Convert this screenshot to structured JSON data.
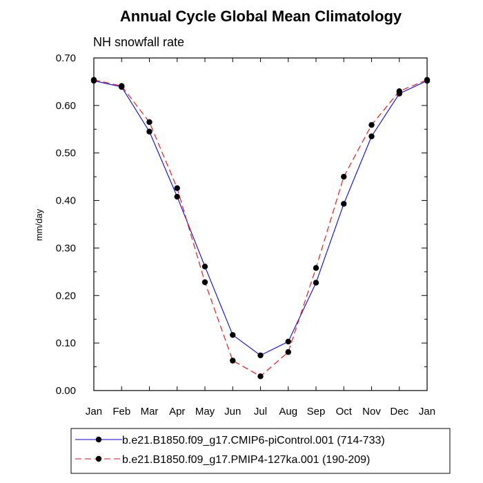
{
  "chart_data": {
    "type": "line",
    "title": "Annual Cycle Global Mean Climatology",
    "subtitle": "NH snowfall rate",
    "xlabel": "",
    "ylabel": "mm/day",
    "categories": [
      "Jan",
      "Feb",
      "Mar",
      "Apr",
      "May",
      "Jun",
      "Jul",
      "Aug",
      "Sep",
      "Oct",
      "Nov",
      "Dec",
      "Jan"
    ],
    "ylim": [
      0.0,
      0.7
    ],
    "yticks": [
      "0.00",
      "0.10",
      "0.20",
      "0.30",
      "0.40",
      "0.50",
      "0.60",
      "0.70"
    ],
    "grid": false,
    "legend_position": "bottom",
    "series": [
      {
        "name": "b.e21.B1850.f09_g17.CMIP6-piControl.001 (714-733)",
        "color": "#0000ff",
        "line_style": "solid",
        "marker": "filled-circle",
        "values": [
          0.652,
          0.639,
          0.545,
          0.408,
          0.261,
          0.117,
          0.074,
          0.103,
          0.227,
          0.393,
          0.535,
          0.625,
          0.652
        ]
      },
      {
        "name": "b.e21.B1850.f09_g17.PMIP4-127ka.001 (190-209)",
        "color": "#ff0000",
        "line_style": "dashed",
        "marker": "filled-circle",
        "values": [
          0.654,
          0.641,
          0.565,
          0.426,
          0.228,
          0.063,
          0.03,
          0.081,
          0.258,
          0.45,
          0.559,
          0.63,
          0.654
        ]
      }
    ]
  }
}
